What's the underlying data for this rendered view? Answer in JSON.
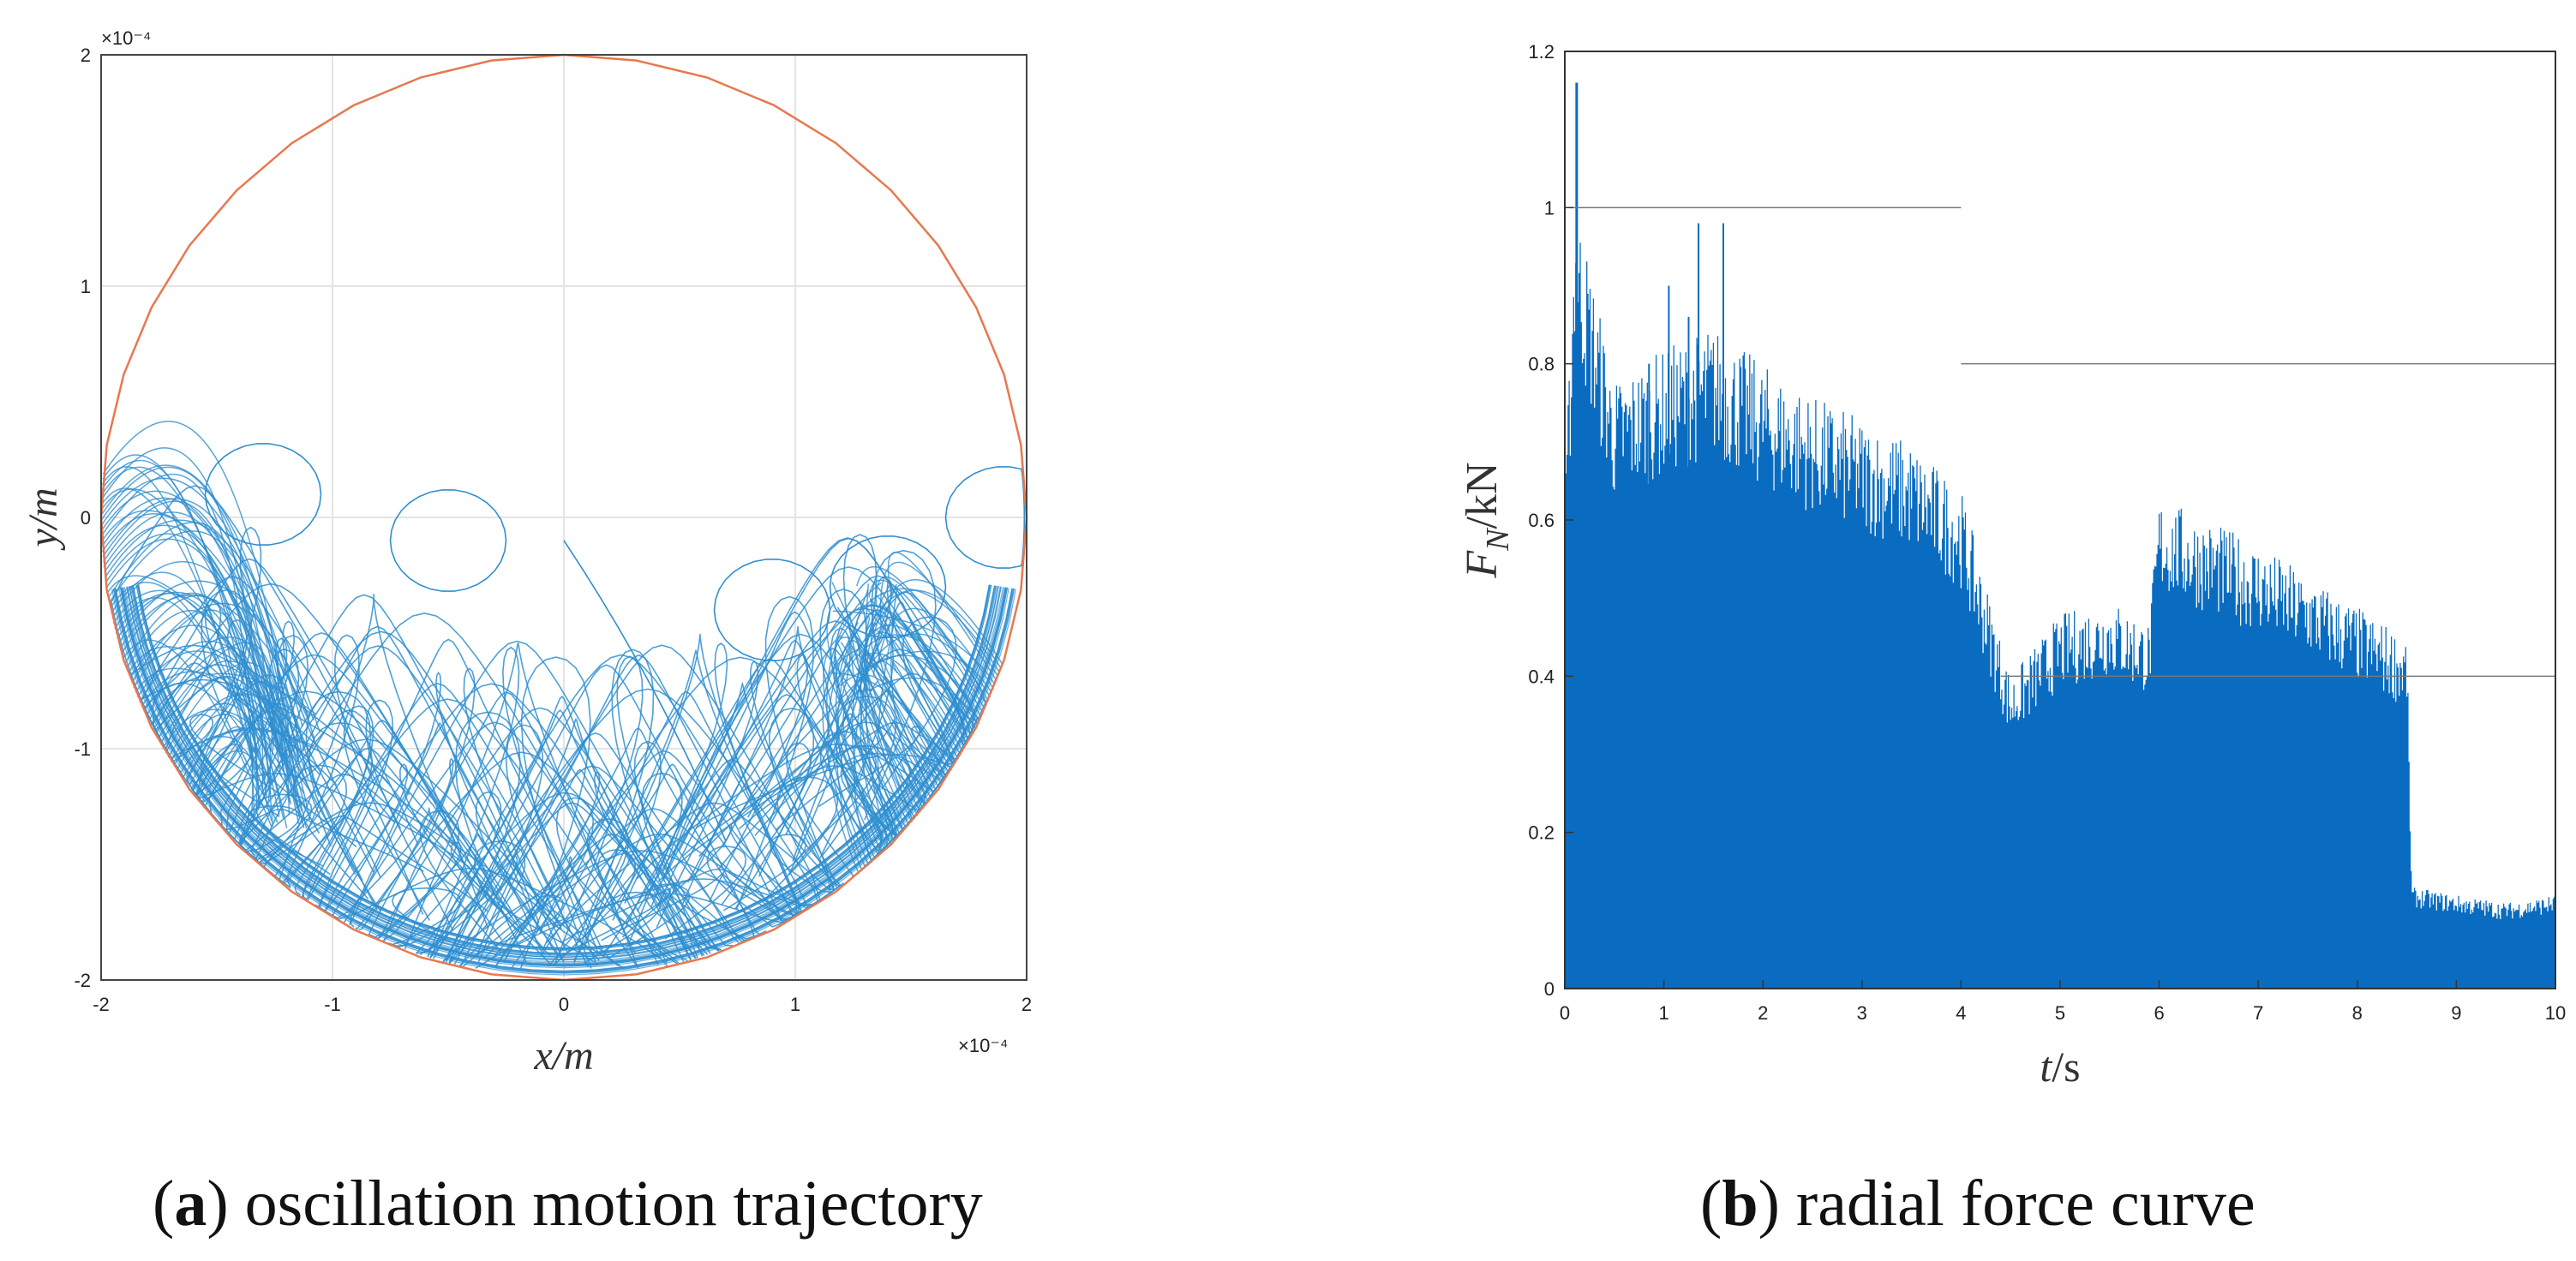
{
  "chart_data": [
    {
      "type": "scatter",
      "panel": "a",
      "title": "",
      "xlabel": "x/m",
      "ylabel": "y/m",
      "xlim": [
        -2,
        2
      ],
      "ylim": [
        -2,
        2
      ],
      "x_ticks": [
        "-2",
        "-1",
        "0",
        "1",
        "2"
      ],
      "y_ticks": [
        "-2",
        "-1",
        "0",
        "1",
        "2"
      ],
      "x_exponent": "×10⁻⁴",
      "y_exponent": "×10⁻⁴",
      "grid": true,
      "series": [
        {
          "name": "clearance circle",
          "color": "#e8784e",
          "shape": "circle",
          "center": [
            0,
            0
          ],
          "radius": 2
        },
        {
          "name": "journal centre trajectory",
          "color": "#2f8fd0",
          "start": [
            0,
            -0.1
          ],
          "x_range": [
            -2,
            2
          ],
          "y_range": [
            -2,
            0.48
          ],
          "dense_region": "lower half (y < -1)"
        }
      ],
      "caption_label": "a",
      "caption_text": " oscillation motion trajectory"
    },
    {
      "type": "line",
      "panel": "b",
      "title": "",
      "xlabel_main": "t",
      "xlabel_unit": "/s",
      "ylabel_main": "F",
      "ylabel_sub": "N",
      "ylabel_unit": "/kN",
      "xlim": [
        0,
        10
      ],
      "ylim": [
        0,
        1.2
      ],
      "x_ticks": [
        "0",
        "1",
        "2",
        "3",
        "4",
        "5",
        "6",
        "7",
        "8",
        "9",
        "10"
      ],
      "y_ticks": [
        "0",
        "0.2",
        "0.4",
        "0.6",
        "0.8",
        "1",
        "1.2"
      ],
      "grid": false,
      "series": [
        {
          "name": "radial force",
          "color": "#0a6cc0",
          "peak": {
            "t": 0.12,
            "F": 1.16
          },
          "envelope_t": [
            0.0,
            0.1,
            0.5,
            1.0,
            1.5,
            2.0,
            2.5,
            3.0,
            3.5,
            4.0,
            4.5,
            5.0,
            5.5,
            5.9,
            6.0,
            6.5,
            7.0,
            7.5,
            8.0,
            8.5,
            8.55,
            9.0,
            9.5,
            10.0
          ],
          "envelope_upper": [
            0.62,
            1.02,
            0.78,
            0.82,
            0.85,
            0.8,
            0.76,
            0.73,
            0.7,
            0.64,
            0.4,
            0.48,
            0.5,
            0.47,
            0.63,
            0.6,
            0.57,
            0.53,
            0.49,
            0.45,
            0.13,
            0.12,
            0.11,
            0.12
          ],
          "envelope_lower": [
            0.0,
            0.0,
            0.0,
            0.0,
            0.0,
            0.0,
            0.0,
            0.0,
            0.0,
            0.0,
            0.0,
            0.0,
            0.0,
            0.0,
            0.0,
            0.0,
            0.0,
            0.0,
            0.0,
            0.0,
            0.03,
            0.02,
            0.01,
            0.02
          ]
        }
      ],
      "reference_lines": [
        {
          "y": 1.0,
          "x_from": 0.05,
          "x_to": 4.0
        },
        {
          "y": 0.8,
          "x_from": 4.0,
          "x_to": 10.0
        },
        {
          "y": 0.4,
          "x_from": 4.4,
          "x_to": 10.0
        }
      ],
      "caption_label": "b",
      "caption_text": " radial force curve"
    }
  ]
}
